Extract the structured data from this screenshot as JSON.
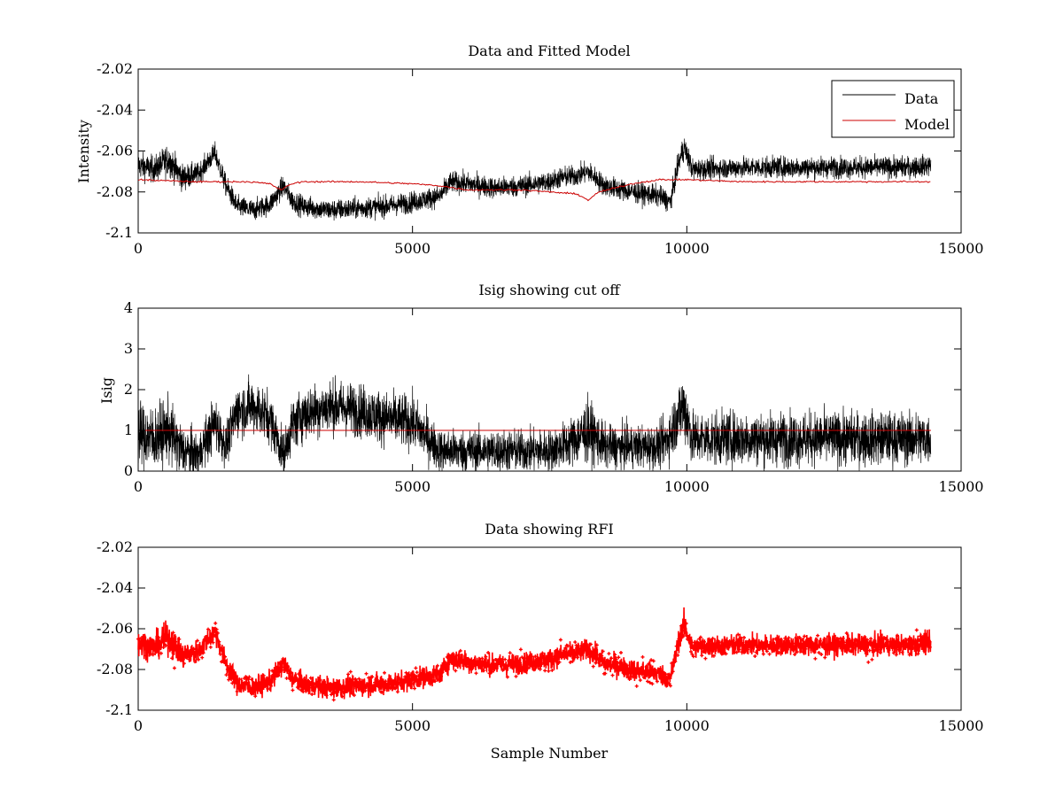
{
  "chart_data": [
    {
      "type": "line",
      "title": "Data and Fitted Model",
      "xlabel": "",
      "ylabel": "Intensity",
      "xlim": [
        0,
        15000
      ],
      "ylim": [
        -2.1,
        -2.02
      ],
      "xticks": [
        "0",
        "5000",
        "10000",
        "15000"
      ],
      "yticks": [
        "-2.1",
        "-2.08",
        "-2.06",
        "-2.04",
        "-2.02"
      ],
      "legend": {
        "placement": "top-right",
        "entries": [
          "Data",
          "Model"
        ]
      },
      "series": [
        {
          "name": "Data",
          "color": "#000000",
          "x": [
            0,
            300,
            550,
            800,
            1100,
            1400,
            1600,
            1800,
            2100,
            2400,
            2650,
            2800,
            3000,
            3500,
            4000,
            4500,
            5000,
            5500,
            5700,
            6000,
            6500,
            7000,
            7500,
            7700,
            8000,
            8200,
            8500,
            9000,
            9500,
            9700,
            9850,
            9950,
            10100,
            11000,
            12000,
            13000,
            14000,
            14450
          ],
          "mean": [
            -2.067,
            -2.069,
            -2.064,
            -2.073,
            -2.071,
            -2.061,
            -2.077,
            -2.087,
            -2.089,
            -2.086,
            -2.077,
            -2.084,
            -2.087,
            -2.089,
            -2.088,
            -2.087,
            -2.085,
            -2.082,
            -2.075,
            -2.076,
            -2.078,
            -2.077,
            -2.075,
            -2.073,
            -2.072,
            -2.07,
            -2.077,
            -2.08,
            -2.082,
            -2.085,
            -2.066,
            -2.058,
            -2.069,
            -2.068,
            -2.068,
            -2.068,
            -2.068,
            -2.067
          ],
          "noise": [
            0.005,
            0.005,
            0.006,
            0.005,
            0.004,
            0.004,
            0.004,
            0.004,
            0.004,
            0.004,
            0.004,
            0.004,
            0.004,
            0.004,
            0.004,
            0.004,
            0.004,
            0.004,
            0.004,
            0.004,
            0.004,
            0.004,
            0.004,
            0.004,
            0.004,
            0.004,
            0.004,
            0.004,
            0.004,
            0.004,
            0.004,
            0.005,
            0.004,
            0.004,
            0.004,
            0.004,
            0.004,
            0.004
          ]
        },
        {
          "name": "Model",
          "color": "#cc0000",
          "x": [
            0,
            1000,
            2000,
            2400,
            2600,
            2800,
            3000,
            4000,
            5000,
            5500,
            6000,
            7000,
            7500,
            8000,
            8200,
            8400,
            8700,
            9000,
            9500,
            10000,
            11000,
            12000,
            13000,
            14000,
            14450
          ],
          "values": [
            -2.074,
            -2.075,
            -2.075,
            -2.076,
            -2.079,
            -2.076,
            -2.075,
            -2.075,
            -2.076,
            -2.077,
            -2.079,
            -2.079,
            -2.08,
            -2.081,
            -2.084,
            -2.08,
            -2.078,
            -2.076,
            -2.074,
            -2.074,
            -2.075,
            -2.075,
            -2.075,
            -2.075,
            -2.075
          ]
        }
      ]
    },
    {
      "type": "line",
      "title": "Isig showing cut off",
      "xlabel": "",
      "ylabel": "Isig",
      "xlim": [
        0,
        15000
      ],
      "ylim": [
        0,
        4
      ],
      "xticks": [
        "0",
        "5000",
        "10000",
        "15000"
      ],
      "yticks": [
        "0",
        "1",
        "2",
        "3",
        "4"
      ],
      "series": [
        {
          "name": "Isig",
          "color": "#000000",
          "x": [
            0,
            300,
            550,
            800,
            1100,
            1400,
            1600,
            1800,
            2100,
            2400,
            2650,
            2800,
            3000,
            3500,
            4000,
            4500,
            5000,
            5500,
            5700,
            6000,
            6500,
            7000,
            7500,
            7700,
            8000,
            8200,
            8500,
            9000,
            9500,
            9700,
            9850,
            9950,
            10100,
            11000,
            12000,
            13000,
            14000,
            14450
          ],
          "mean": [
            0.9,
            0.8,
            1.0,
            0.5,
            0.4,
            1.2,
            0.6,
            1.5,
            1.6,
            1.3,
            0.4,
            1.1,
            1.4,
            1.6,
            1.5,
            1.3,
            1.2,
            0.5,
            0.5,
            0.5,
            0.5,
            0.5,
            0.5,
            0.6,
            0.8,
            1.0,
            0.6,
            0.6,
            0.6,
            0.9,
            1.4,
            1.6,
            0.8,
            0.8,
            0.8,
            0.8,
            0.8,
            0.8
          ],
          "noise": [
            0.6,
            0.6,
            0.6,
            0.5,
            0.4,
            0.5,
            0.4,
            0.5,
            0.5,
            0.5,
            0.4,
            0.5,
            0.5,
            0.5,
            0.5,
            0.5,
            0.5,
            0.4,
            0.4,
            0.4,
            0.4,
            0.4,
            0.4,
            0.4,
            0.5,
            0.6,
            0.4,
            0.4,
            0.4,
            0.5,
            0.6,
            0.7,
            0.5,
            0.5,
            0.5,
            0.5,
            0.5,
            0.5
          ]
        },
        {
          "name": "Cut off",
          "color": "#cc0000",
          "x": [
            0,
            14450
          ],
          "values": [
            1,
            1
          ]
        }
      ]
    },
    {
      "type": "scatter",
      "title": "Data showing RFI",
      "xlabel": "Sample Number",
      "ylabel": "",
      "xlim": [
        0,
        15000
      ],
      "ylim": [
        -2.1,
        -2.02
      ],
      "xticks": [
        "0",
        "5000",
        "10000",
        "15000"
      ],
      "yticks": [
        "-2.1",
        "-2.08",
        "-2.06",
        "-2.04",
        "-2.02"
      ],
      "series": [
        {
          "name": "RFI",
          "color": "#ff0000",
          "x": [
            0,
            300,
            550,
            800,
            1100,
            1400,
            1600,
            1800,
            2100,
            2400,
            2650,
            2800,
            3000,
            3500,
            4000,
            4500,
            5000,
            5500,
            5700,
            6000,
            6500,
            7000,
            7500,
            7700,
            8000,
            8200,
            8500,
            9000,
            9500,
            9700,
            9850,
            9950,
            10100,
            11000,
            12000,
            13000,
            14000,
            14450
          ],
          "mean": [
            -2.067,
            -2.069,
            -2.064,
            -2.073,
            -2.071,
            -2.061,
            -2.077,
            -2.087,
            -2.089,
            -2.086,
            -2.077,
            -2.084,
            -2.087,
            -2.089,
            -2.088,
            -2.087,
            -2.085,
            -2.082,
            -2.075,
            -2.076,
            -2.078,
            -2.077,
            -2.075,
            -2.073,
            -2.072,
            -2.07,
            -2.077,
            -2.08,
            -2.082,
            -2.085,
            -2.066,
            -2.058,
            -2.069,
            -2.068,
            -2.068,
            -2.068,
            -2.068,
            -2.067
          ],
          "noise": [
            0.005,
            0.005,
            0.006,
            0.005,
            0.004,
            0.004,
            0.004,
            0.004,
            0.004,
            0.004,
            0.004,
            0.004,
            0.004,
            0.004,
            0.004,
            0.004,
            0.004,
            0.004,
            0.004,
            0.004,
            0.004,
            0.004,
            0.004,
            0.004,
            0.004,
            0.004,
            0.004,
            0.004,
            0.004,
            0.004,
            0.004,
            0.005,
            0.004,
            0.004,
            0.004,
            0.004,
            0.004,
            0.004
          ]
        }
      ]
    }
  ]
}
